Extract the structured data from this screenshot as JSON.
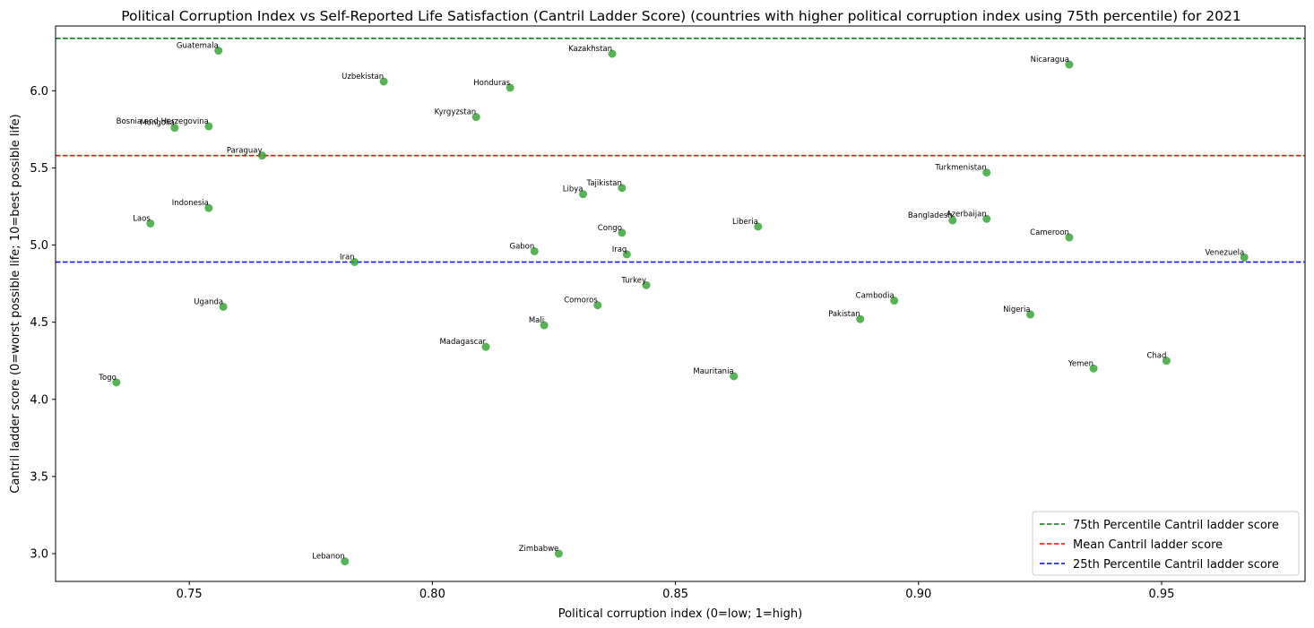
{
  "chart_data": {
    "type": "scatter",
    "title": "Political Corruption Index vs Self-Reported Life Satisfaction (Cantril Ladder Score) (countries with higher political corruption index using 75th percentile) for 2021",
    "xlabel": "Political corruption index (0=low; 1=high)",
    "ylabel": "Cantril ladder score (0=worst possible life; 10=best possible life)",
    "xlim": [
      0.7225,
      0.9795
    ],
    "ylim": [
      2.82,
      6.42
    ],
    "xticks": [
      0.75,
      0.8,
      0.85,
      0.9,
      0.95
    ],
    "xtick_labels": [
      "0.75",
      "0.80",
      "0.85",
      "0.90",
      "0.95"
    ],
    "yticks": [
      3.0,
      3.5,
      4.0,
      4.5,
      5.0,
      5.5,
      6.0
    ],
    "ytick_labels": [
      "3.0",
      "3.5",
      "4.0",
      "4.5",
      "5.0",
      "5.5",
      "6.0"
    ],
    "grid": false,
    "legend_position": "bottom-right",
    "point_color": "#2ca02c",
    "points": [
      {
        "label": "Guatemala",
        "x": 0.756,
        "y": 6.26
      },
      {
        "label": "Kazakhstan",
        "x": 0.837,
        "y": 6.24
      },
      {
        "label": "Nicaragua",
        "x": 0.931,
        "y": 6.17
      },
      {
        "label": "Uzbekistan",
        "x": 0.79,
        "y": 6.06
      },
      {
        "label": "Honduras",
        "x": 0.816,
        "y": 6.02
      },
      {
        "label": "Kyrgyzstan",
        "x": 0.809,
        "y": 5.83
      },
      {
        "label": "Bosnia and Herzegovina",
        "x": 0.754,
        "y": 5.77
      },
      {
        "label": "Mongolia",
        "x": 0.747,
        "y": 5.76
      },
      {
        "label": "Paraguay",
        "x": 0.765,
        "y": 5.58
      },
      {
        "label": "Turkmenistan",
        "x": 0.914,
        "y": 5.47
      },
      {
        "label": "Tajikistan",
        "x": 0.839,
        "y": 5.37
      },
      {
        "label": "Libya",
        "x": 0.831,
        "y": 5.33
      },
      {
        "label": "Indonesia",
        "x": 0.754,
        "y": 5.24
      },
      {
        "label": "Azerbaijan",
        "x": 0.914,
        "y": 5.17
      },
      {
        "label": "Bangladesh",
        "x": 0.907,
        "y": 5.16
      },
      {
        "label": "Laos",
        "x": 0.742,
        "y": 5.14
      },
      {
        "label": "Liberia",
        "x": 0.867,
        "y": 5.12
      },
      {
        "label": "Congo",
        "x": 0.839,
        "y": 5.08
      },
      {
        "label": "Cameroon",
        "x": 0.931,
        "y": 5.05
      },
      {
        "label": "Gabon",
        "x": 0.821,
        "y": 4.96
      },
      {
        "label": "Iraq",
        "x": 0.84,
        "y": 4.94
      },
      {
        "label": "Venezuela",
        "x": 0.967,
        "y": 4.92
      },
      {
        "label": "Iran",
        "x": 0.784,
        "y": 4.89
      },
      {
        "label": "Turkey",
        "x": 0.844,
        "y": 4.74
      },
      {
        "label": "Cambodia",
        "x": 0.895,
        "y": 4.64
      },
      {
        "label": "Comoros",
        "x": 0.834,
        "y": 4.61
      },
      {
        "label": "Uganda",
        "x": 0.757,
        "y": 4.6
      },
      {
        "label": "Nigeria",
        "x": 0.923,
        "y": 4.55
      },
      {
        "label": "Pakistan",
        "x": 0.888,
        "y": 4.52
      },
      {
        "label": "Mali",
        "x": 0.823,
        "y": 4.48
      },
      {
        "label": "Madagascar",
        "x": 0.811,
        "y": 4.34
      },
      {
        "label": "Chad",
        "x": 0.951,
        "y": 4.25
      },
      {
        "label": "Yemen",
        "x": 0.936,
        "y": 4.2
      },
      {
        "label": "Mauritania",
        "x": 0.862,
        "y": 4.15
      },
      {
        "label": "Togo",
        "x": 0.735,
        "y": 4.11
      },
      {
        "label": "Zimbabwe",
        "x": 0.826,
        "y": 3.0
      },
      {
        "label": "Lebanon",
        "x": 0.782,
        "y": 2.95
      }
    ],
    "reference_lines": [
      {
        "name": "75th Percentile Cantril ladder score",
        "y": 6.34,
        "color": "#008000"
      },
      {
        "name": "Mean Cantril ladder score",
        "y": 5.58,
        "color": "#ff0000"
      },
      {
        "name": "25th Percentile Cantril ladder score",
        "y": 4.89,
        "color": "#0000ff"
      }
    ]
  }
}
